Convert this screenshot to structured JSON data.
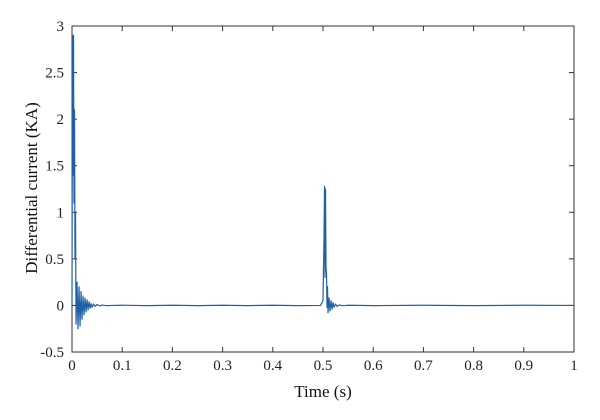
{
  "chart_data": {
    "type": "line",
    "title": "",
    "xlabel": "Time (s)",
    "ylabel": "Differential current (KA)",
    "xlim": [
      0,
      1
    ],
    "ylim": [
      -0.5,
      3
    ],
    "grid": false,
    "x_ticks": [
      "0",
      "0.1",
      "0.2",
      "0.3",
      "0.4",
      "0.5",
      "0.6",
      "0.7",
      "0.8",
      "0.9",
      "1"
    ],
    "y_ticks": [
      "-0.5",
      "0",
      "0.5",
      "1",
      "1.5",
      "2",
      "2.5",
      "3"
    ],
    "line_color": "#1f5fa8",
    "series": [
      {
        "x": [
          0,
          0.001,
          0.002,
          0.003,
          0.004,
          0.005,
          0.006,
          0.007,
          0.008,
          0.01,
          0.012,
          0.014,
          0.016,
          0.018,
          0.02,
          0.022,
          0.024,
          0.026,
          0.028,
          0.03,
          0.032,
          0.034,
          0.036,
          0.038,
          0.04,
          0.043,
          0.046,
          0.05,
          0.055,
          0.06,
          0.07,
          0.08,
          0.1,
          0.15,
          0.2,
          0.25,
          0.3,
          0.35,
          0.4,
          0.45,
          0.495,
          0.5,
          0.501,
          0.502,
          0.503,
          0.504,
          0.505,
          0.506,
          0.507,
          0.508,
          0.509,
          0.51,
          0.512,
          0.514,
          0.516,
          0.518,
          0.52,
          0.522,
          0.525,
          0.528,
          0.532,
          0.54,
          0.55,
          0.6,
          0.7,
          0.8,
          0.9,
          1.0
        ],
        "y": [
          0,
          2.9,
          1.4,
          2.9,
          1.1,
          2.1,
          0.5,
          1.0,
          -0.2,
          0.25,
          -0.25,
          0.2,
          -0.22,
          0.15,
          -0.15,
          0.1,
          -0.1,
          0.08,
          -0.07,
          0.06,
          -0.05,
          0.04,
          -0.03,
          0.02,
          -0.02,
          0.015,
          -0.01,
          0.01,
          -0.005,
          0.004,
          -0.003,
          0,
          0.002,
          -0.002,
          0.002,
          -0.002,
          0.002,
          -0.002,
          0.002,
          -0.002,
          0,
          0.05,
          0.4,
          0.7,
          1.28,
          0.3,
          1.25,
          0.4,
          0.35,
          -0.02,
          0.2,
          -0.08,
          0.08,
          -0.06,
          0.05,
          -0.04,
          0.03,
          -0.02,
          0.015,
          -0.01,
          0.005,
          -0.003,
          0.002,
          -0.002,
          0.002,
          -0.002,
          0.002,
          0
        ]
      }
    ]
  }
}
